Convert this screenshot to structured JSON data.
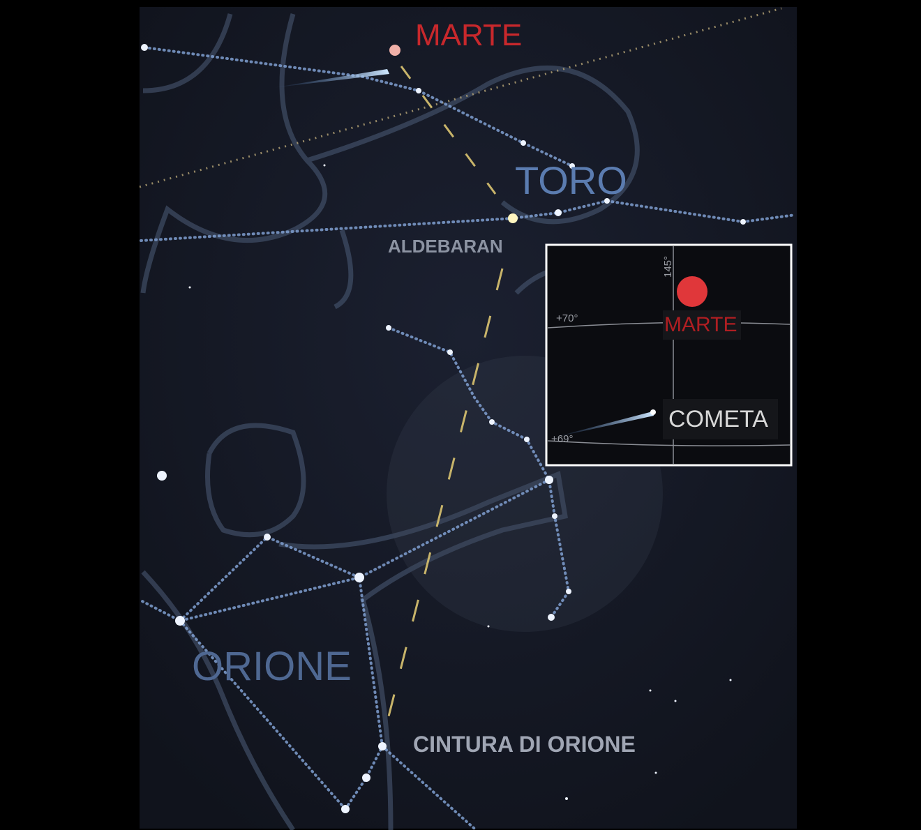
{
  "sky": {
    "mars": "MARTE",
    "taurus": "TORO",
    "aldebaran": "ALDEBARAN",
    "orion": "ORIONE",
    "orion_belt": "CINTURA DI ORIONE"
  },
  "inset": {
    "ra": "145°",
    "dec_top": "+70°",
    "dec_bottom": "+69°",
    "mars": "MARTE",
    "comet": "COMETA"
  }
}
